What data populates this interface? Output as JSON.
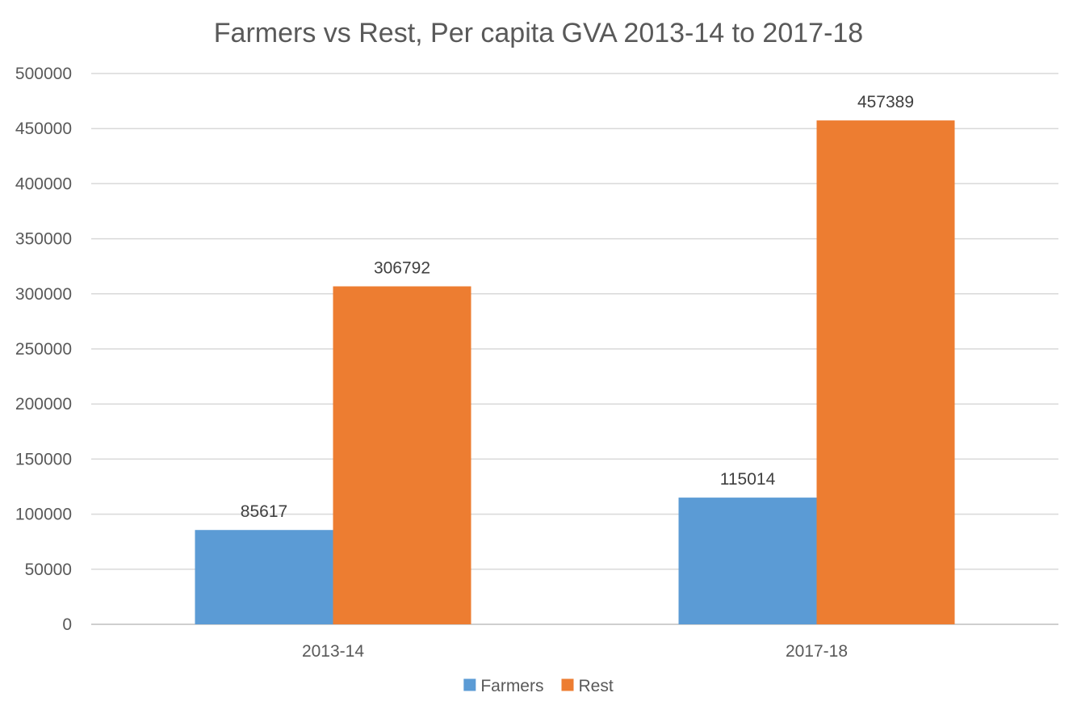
{
  "chart_data": {
    "type": "bar",
    "title": "Farmers vs Rest, Per capita GVA 2013-14 to 2017-18",
    "xlabel": "",
    "ylabel": "",
    "categories": [
      "2013-14",
      "2017-18"
    ],
    "series": [
      {
        "name": "Farmers",
        "values": [
          85617,
          115014
        ],
        "color": "#5b9bd5"
      },
      {
        "name": "Rest",
        "values": [
          306792,
          457389
        ],
        "color": "#ed7d31"
      }
    ],
    "ylim": [
      0,
      500000
    ],
    "yticks": [
      "0",
      "50000",
      "100000",
      "150000",
      "200000",
      "250000",
      "300000",
      "350000",
      "400000",
      "450000",
      "500000"
    ],
    "grid": true,
    "legend_position": "bottom"
  }
}
